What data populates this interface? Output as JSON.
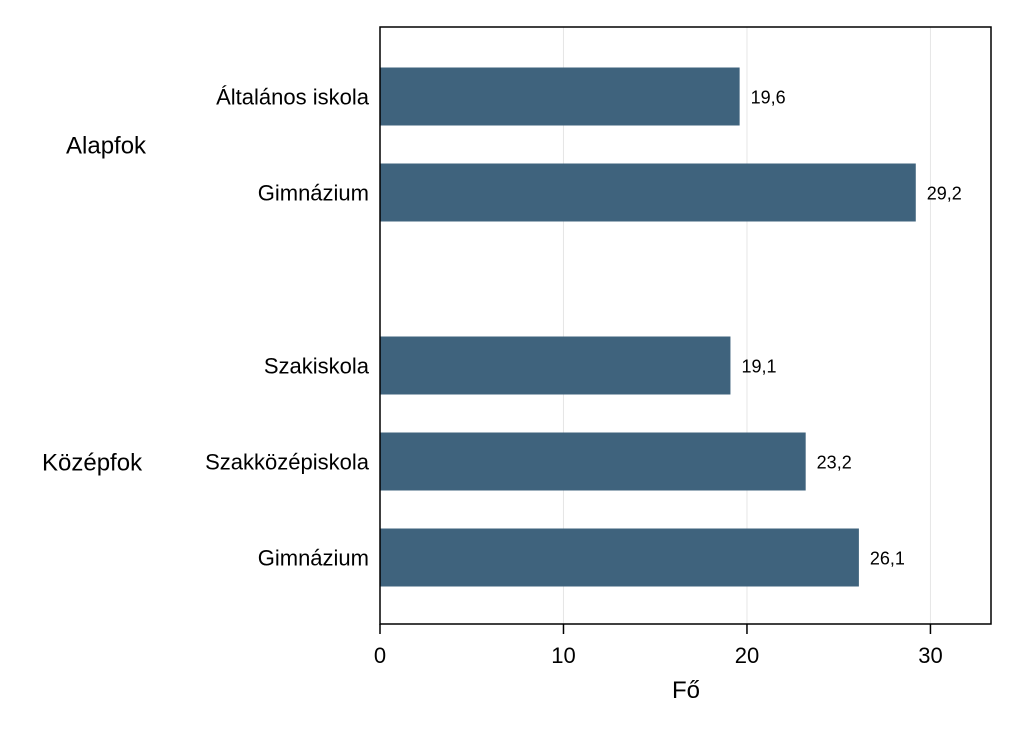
{
  "chart_data": {
    "type": "bar",
    "orientation": "horizontal",
    "groups": [
      {
        "label": "Alapfok",
        "categories": [
          "Általános iskola",
          "Gimnázium"
        ],
        "values": [
          19.6,
          29.2
        ]
      },
      {
        "label": "Középfok",
        "categories": [
          "Szakiskola",
          "Szakközépiskola",
          "Gimnázium"
        ],
        "values": [
          19.1,
          23.2,
          26.1
        ]
      }
    ],
    "data_labels": [
      "19,6",
      "29,2",
      "19,1",
      "23,2",
      "26,1"
    ],
    "xlabel": "Fő",
    "xlim": [
      0,
      33.3
    ],
    "xticks": [
      0,
      10,
      20,
      30
    ],
    "xtick_labels": [
      "0",
      "10",
      "20",
      "30"
    ],
    "grid": "vertical",
    "bar_color": "#3f637d",
    "grid_color": "#e6e6e6"
  }
}
